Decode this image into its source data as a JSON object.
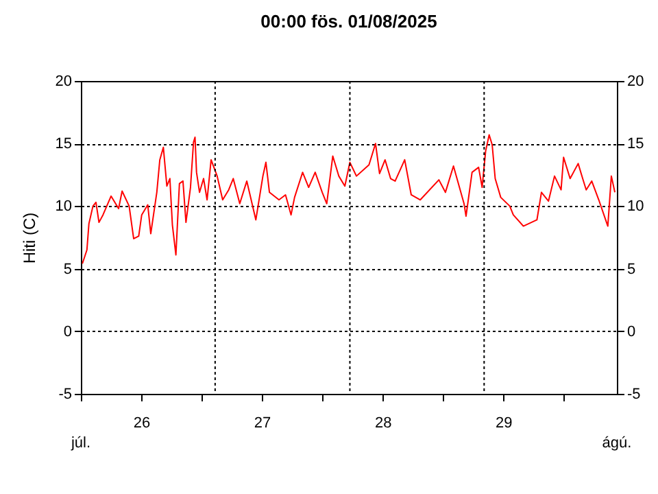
{
  "chart_data": {
    "type": "line",
    "title": "00:00   fös.  01/08/2025",
    "ylabel": "Hiti (C)",
    "annotations": [
      "júl.",
      "ágú."
    ],
    "xlim": [
      "2025-07-26T00:00",
      "2025-07-30T10:36"
    ],
    "xticks": [
      {
        "value": "2025-07-26T00:00",
        "label": null
      },
      {
        "value": "2025-07-26T12:00",
        "label": "26"
      },
      {
        "value": "2025-07-27T00:00",
        "label": null
      },
      {
        "value": "2025-07-27T12:00",
        "label": "27"
      },
      {
        "value": "2025-07-28T00:00",
        "label": null
      },
      {
        "value": "2025-07-28T12:00",
        "label": "28"
      },
      {
        "value": "2025-07-29T00:00",
        "label": null
      },
      {
        "value": "2025-07-29T12:00",
        "label": "29"
      },
      {
        "value": "2025-07-30T00:00",
        "label": null
      }
    ],
    "ylim": [
      -5,
      20
    ],
    "yticks": [
      -5,
      0,
      5,
      10,
      15,
      20
    ],
    "y2lim": [
      -5,
      20
    ],
    "y2ticks": [
      -5,
      0,
      5,
      10,
      15,
      20
    ],
    "grid": "y",
    "line_style": "solid",
    "ref_lines": [
      {
        "axis": "x",
        "value": "2025-07-27T02:42",
        "line_style": "dotted"
      },
      {
        "axis": "x",
        "value": "2025-07-28T05:30",
        "line_style": "dotted"
      },
      {
        "axis": "x",
        "value": "2025-07-29T08:12",
        "line_style": "dotted"
      }
    ],
    "series": [
      {
        "color": "#ff0000",
        "x": [
          "2025-07-26T00:18",
          "2025-07-26T01:12",
          "2025-07-26T01:36",
          "2025-07-26T02:24",
          "2025-07-26T03:00",
          "2025-07-26T03:36",
          "2025-07-26T04:24",
          "2025-07-26T06:00",
          "2025-07-26T07:30",
          "2025-07-26T08:12",
          "2025-07-26T09:36",
          "2025-07-26T10:30",
          "2025-07-26T11:30",
          "2025-07-26T12:06",
          "2025-07-26T13:18",
          "2025-07-26T13:54",
          "2025-07-26T15:06",
          "2025-07-26T15:42",
          "2025-07-26T16:24",
          "2025-07-26T17:06",
          "2025-07-26T17:42",
          "2025-07-26T18:12",
          "2025-07-26T18:54",
          "2025-07-26T19:36",
          "2025-07-26T20:18",
          "2025-07-26T20:54",
          "2025-07-26T21:48",
          "2025-07-26T22:24",
          "2025-07-26T22:42",
          "2025-07-26T23:00",
          "2025-07-26T23:36",
          "2025-07-27T00:24",
          "2025-07-27T01:06",
          "2025-07-27T01:54",
          "2025-07-27T03:06",
          "2025-07-27T04:12",
          "2025-07-27T05:24",
          "2025-07-27T06:18",
          "2025-07-27T07:36",
          "2025-07-27T09:00",
          "2025-07-27T10:48",
          "2025-07-27T12:12",
          "2025-07-27T12:48",
          "2025-07-27T13:30",
          "2025-07-27T15:24",
          "2025-07-27T16:42",
          "2025-07-27T17:48",
          "2025-07-27T18:30",
          "2025-07-27T20:06",
          "2025-07-27T21:18",
          "2025-07-27T22:36",
          "2025-07-28T00:00",
          "2025-07-28T00:54",
          "2025-07-28T02:06",
          "2025-07-28T03:18",
          "2025-07-28T04:30",
          "2025-07-28T05:30",
          "2025-07-28T06:48",
          "2025-07-28T09:18",
          "2025-07-28T10:36",
          "2025-07-28T11:24",
          "2025-07-28T12:30",
          "2025-07-28T13:36",
          "2025-07-28T14:30",
          "2025-07-28T16:24",
          "2025-07-28T17:42",
          "2025-07-28T19:30",
          "2025-07-28T23:12",
          "2025-07-29T00:30",
          "2025-07-29T02:06",
          "2025-07-29T04:12",
          "2025-07-29T04:36",
          "2025-07-29T05:48",
          "2025-07-29T07:06",
          "2025-07-29T07:48",
          "2025-07-29T08:30",
          "2025-07-29T09:12",
          "2025-07-29T09:48",
          "2025-07-29T10:24",
          "2025-07-29T11:30",
          "2025-07-29T13:18",
          "2025-07-29T14:00",
          "2025-07-29T16:00",
          "2025-07-29T18:42",
          "2025-07-29T19:36",
          "2025-07-29T21:00",
          "2025-07-29T22:12",
          "2025-07-29T23:30",
          "2025-07-30T00:00",
          "2025-07-30T01:18",
          "2025-07-30T02:54",
          "2025-07-30T03:48",
          "2025-07-30T04:30",
          "2025-07-30T05:36",
          "2025-07-30T07:00",
          "2025-07-30T08:12",
          "2025-07-30T08:48",
          "2025-07-30T09:30",
          "2025-07-30T10:12"
        ],
        "values": [
          5.4,
          6.5,
          8.6,
          10.0,
          10.3,
          8.7,
          9.3,
          10.8,
          9.8,
          11.2,
          10.0,
          7.4,
          7.6,
          9.3,
          10.1,
          7.8,
          11.1,
          13.7,
          14.7,
          11.6,
          12.2,
          8.5,
          6.1,
          11.8,
          12.0,
          8.7,
          11.5,
          15.1,
          15.5,
          12.7,
          11.1,
          12.2,
          10.5,
          13.7,
          12.4,
          10.5,
          11.3,
          12.2,
          10.2,
          12.0,
          8.9,
          12.4,
          13.5,
          11.1,
          10.5,
          10.9,
          9.3,
          10.7,
          12.7,
          11.5,
          12.7,
          11.1,
          10.2,
          14.0,
          12.4,
          11.6,
          13.5,
          12.4,
          13.3,
          15.0,
          12.6,
          13.7,
          12.2,
          12.0,
          13.7,
          10.9,
          10.5,
          12.1,
          11.1,
          13.2,
          10.2,
          9.2,
          12.7,
          13.1,
          11.5,
          14.4,
          15.7,
          14.9,
          12.2,
          10.7,
          10.0,
          9.3,
          8.4,
          8.9,
          11.1,
          10.4,
          12.4,
          11.3,
          13.9,
          12.2,
          13.4,
          12.2,
          11.3,
          12.0,
          10.5,
          9.1,
          8.4,
          12.4,
          11.1
        ]
      }
    ]
  }
}
